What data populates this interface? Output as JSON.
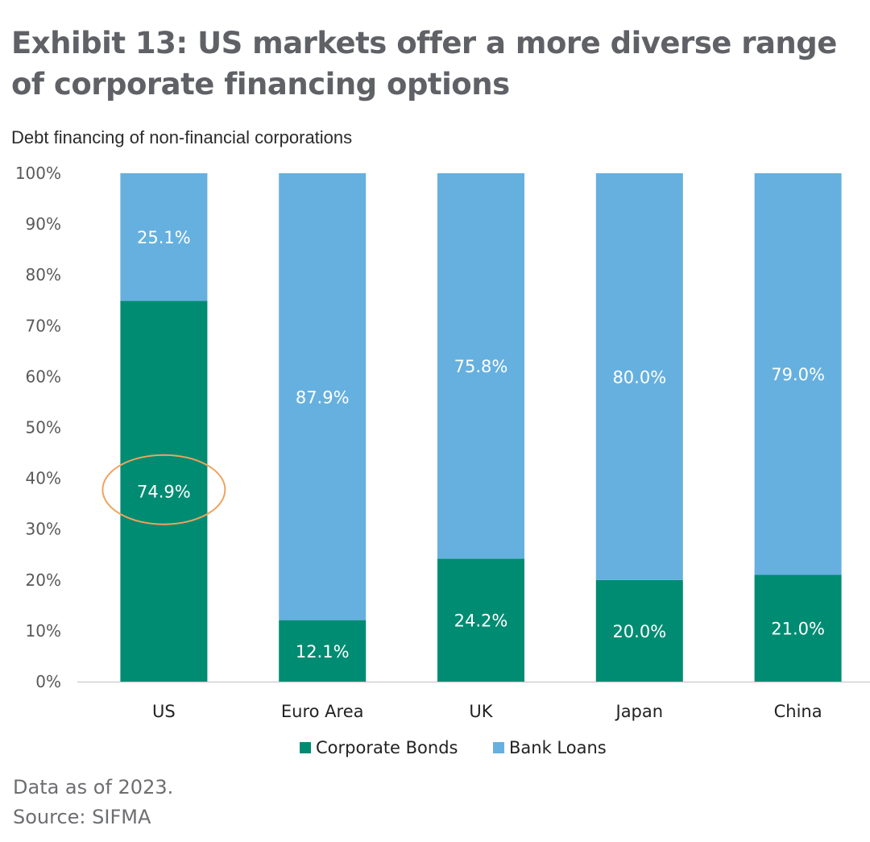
{
  "header": {
    "title": "Exhibit 13: US markets offer a more diverse range of corporate financing options",
    "subtitle": "Debt financing of non-financial corporations"
  },
  "footer": {
    "data_note": "Data as of 2023.",
    "source": "Source: SIFMA"
  },
  "colors": {
    "corporate_bonds": "#008c72",
    "bank_loans": "#66b0df",
    "highlight": "#f0a35e",
    "axis_text": "#595959"
  },
  "chart_data": {
    "type": "bar",
    "stacked": true,
    "title": "Debt financing of non-financial corporations",
    "xlabel": "",
    "ylabel": "",
    "ylim": [
      0,
      100
    ],
    "y_ticks": [
      "0%",
      "10%",
      "20%",
      "30%",
      "40%",
      "50%",
      "60%",
      "70%",
      "80%",
      "90%",
      "100%"
    ],
    "categories": [
      "US",
      "Euro Area",
      "UK",
      "Japan",
      "China"
    ],
    "series": [
      {
        "name": "Corporate Bonds",
        "values": [
          74.9,
          12.1,
          24.2,
          20.0,
          21.0
        ],
        "labels": [
          "74.9%",
          "12.1%",
          "24.2%",
          "20.0%",
          "21.0%"
        ]
      },
      {
        "name": "Bank Loans",
        "values": [
          25.1,
          87.9,
          75.8,
          80.0,
          79.0
        ],
        "labels": [
          "25.1%",
          "87.9%",
          "75.8%",
          "80.0%",
          "79.0%"
        ]
      }
    ],
    "legend_position": "bottom",
    "annotations": [
      {
        "type": "ellipse",
        "category": "US",
        "series": "Corporate Bonds",
        "value_label": "74.9%"
      }
    ]
  }
}
